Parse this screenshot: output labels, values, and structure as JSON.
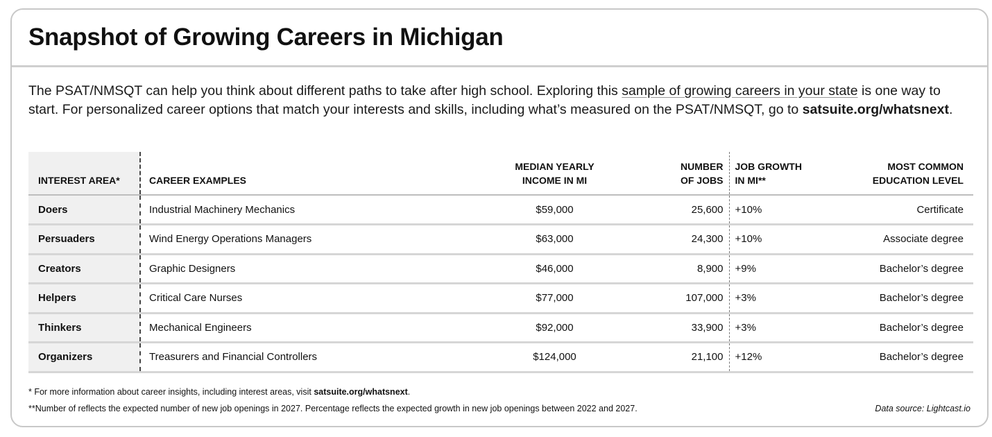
{
  "title": "Snapshot of Growing Careers in Michigan",
  "intro": {
    "part1": "The PSAT/NMSQT can help you think about different paths to take after high school. Exploring this ",
    "link_text": "sample of growing careers in your state",
    "part2": " is one way to start. For personalized career options that match your interests and skills, including what’s measured on the PSAT/NMSQT, go to ",
    "url": "satsuite.org/whatsnext",
    "end": "."
  },
  "table": {
    "headers": {
      "interest_area": "INTEREST AREA*",
      "career_examples": "CAREER EXAMPLES",
      "income_line1": "MEDIAN YEARLY",
      "income_line2": "INCOME IN MI",
      "jobs_line1": "NUMBER",
      "jobs_line2": "OF JOBS",
      "growth_line1": "JOB GROWTH",
      "growth_line2": "IN MI**",
      "edu_line1": "MOST COMMON",
      "edu_line2": "EDUCATION LEVEL"
    },
    "rows": [
      {
        "area": "Doers",
        "career": "Industrial Machinery Mechanics",
        "income": "$59,000",
        "jobs": "25,600",
        "growth": "+10%",
        "education": "Certificate"
      },
      {
        "area": "Persuaders",
        "career": "Wind Energy Operations Managers",
        "income": "$63,000",
        "jobs": "24,300",
        "growth": "+10%",
        "education": "Associate degree"
      },
      {
        "area": "Creators",
        "career": "Graphic Designers",
        "income": "$46,000",
        "jobs": "8,900",
        "growth": "+9%",
        "education": "Bachelor’s degree"
      },
      {
        "area": "Helpers",
        "career": "Critical Care Nurses",
        "income": "$77,000",
        "jobs": "107,000",
        "growth": "+3%",
        "education": "Bachelor’s degree"
      },
      {
        "area": "Thinkers",
        "career": "Mechanical Engineers",
        "income": "$92,000",
        "jobs": "33,900",
        "growth": "+3%",
        "education": "Bachelor’s degree"
      },
      {
        "area": "Organizers",
        "career": "Treasurers and Financial Controllers",
        "income": "$124,000",
        "jobs": "21,100",
        "growth": "+12%",
        "education": "Bachelor’s degree"
      }
    ]
  },
  "footnotes": {
    "note1_text": "* For more information about career insights, including interest areas, visit ",
    "note1_link": "satsuite.org/whatsnext",
    "note1_end": ".",
    "note2": "**Number of reflects the expected number of new job openings in 2027. Percentage reflects the expected growth in new job openings between 2022 and 2027.",
    "source": "Data source: Lightcast.io"
  }
}
